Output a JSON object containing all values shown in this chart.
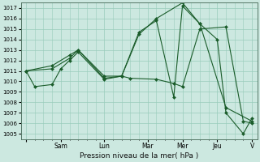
{
  "title": "",
  "xlabel": "Pression niveau de la mer( hPa )",
  "ylabel": "",
  "bg_color": "#cce8e0",
  "grid_color": "#99ccbb",
  "line_color": "#1a5c2a",
  "marker_color": "#1a5c2a",
  "ylim": [
    1004.5,
    1017.5
  ],
  "yticks": [
    1005,
    1006,
    1007,
    1008,
    1009,
    1010,
    1011,
    1012,
    1013,
    1014,
    1015,
    1016,
    1017
  ],
  "xlim": [
    -0.3,
    13.3
  ],
  "day_labels": [
    "",
    "Sam",
    "Lun",
    "Mar",
    "Mer",
    "Jeu",
    "V"
  ],
  "day_positions": [
    0,
    2.0,
    4.5,
    7.0,
    9.0,
    11.0,
    13.0
  ],
  "grid_xticks_minor": 14,
  "series": [
    {
      "x": [
        0.0,
        0.5,
        1.5,
        2.0,
        2.5,
        3.0,
        4.5,
        5.5,
        6.0,
        7.5,
        8.5,
        9.0,
        10.0,
        11.5,
        12.5,
        13.0
      ],
      "y": [
        1011.0,
        1009.5,
        1009.7,
        1011.2,
        1012.0,
        1012.8,
        1010.2,
        1010.5,
        1010.3,
        1010.2,
        1009.8,
        1009.5,
        1015.0,
        1015.2,
        1006.2,
        1006.0
      ]
    },
    {
      "x": [
        0.0,
        1.5,
        2.5,
        3.0,
        4.5,
        5.5,
        6.5,
        7.5,
        8.5,
        9.0,
        10.0,
        11.0,
        11.5,
        12.5,
        13.0
      ],
      "y": [
        1011.0,
        1011.2,
        1012.2,
        1013.0,
        1010.3,
        1010.5,
        1014.7,
        1015.8,
        1008.5,
        1017.2,
        1015.5,
        1014.0,
        1007.0,
        1005.0,
        1006.5
      ]
    },
    {
      "x": [
        0.0,
        1.5,
        2.5,
        3.0,
        4.5,
        5.5,
        6.5,
        7.5,
        9.0,
        10.0,
        11.5,
        13.0
      ],
      "y": [
        1011.0,
        1011.5,
        1012.5,
        1013.0,
        1010.5,
        1010.5,
        1014.5,
        1016.0,
        1017.5,
        1015.5,
        1007.5,
        1006.2
      ]
    }
  ]
}
